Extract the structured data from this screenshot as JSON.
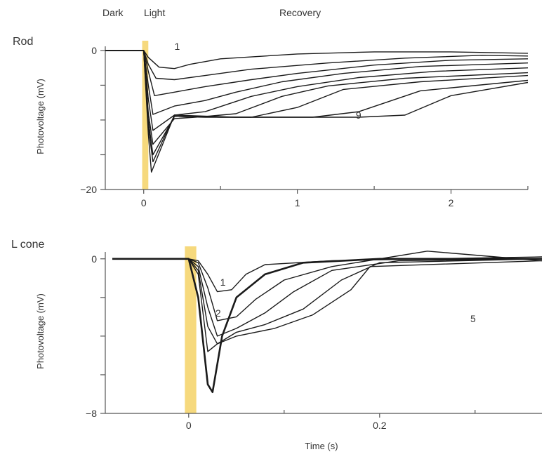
{
  "phases": {
    "dark": "Dark",
    "light": "Light",
    "recovery": "Recovery"
  },
  "colors": {
    "trace": "#1a1a1a",
    "light_pulse": "#f5d266",
    "axis": "#555555"
  },
  "chart_data": [
    {
      "type": "line",
      "panel_label": "Rod",
      "ylabel": "Photovoltage (mV)",
      "xlabel": "",
      "xlim": [
        -0.25,
        2.5
      ],
      "ylim": [
        -20,
        1
      ],
      "x_ticks": [
        0,
        1,
        2
      ],
      "x_tick_labels": [
        "0",
        "1",
        "2"
      ],
      "x_minor_ticks": [
        0.5,
        1.5,
        2.5
      ],
      "y_ticks": [
        0,
        -5,
        -10,
        -15,
        -20
      ],
      "y_tick_labels": [
        "0",
        "",
        "",
        "",
        "−20"
      ],
      "light_pulse": [
        -0.01,
        0.03
      ],
      "series": [
        {
          "name": "1",
          "label_at": [
            0.2,
            0.6
          ],
          "baseline_end": 0,
          "x": [
            -0.25,
            0,
            0.03,
            0.1,
            0.2,
            0.3,
            0.5,
            1,
            1.5,
            2,
            2.5
          ],
          "y": [
            0,
            0,
            -1,
            -2.4,
            -2.6,
            -2.0,
            -1.2,
            -0.5,
            -0.2,
            -0.2,
            -0.4
          ]
        },
        {
          "name": "",
          "x": [
            -0.25,
            0,
            0.03,
            0.08,
            0.2,
            0.4,
            0.7,
            1.2,
            1.7,
            2.2,
            2.5
          ],
          "y": [
            0,
            0,
            -2,
            -4.0,
            -4.2,
            -3.6,
            -2.7,
            -1.8,
            -1.1,
            -0.7,
            -0.8
          ]
        },
        {
          "name": "",
          "x": [
            -0.25,
            0,
            0.03,
            0.07,
            0.2,
            0.4,
            0.7,
            1.0,
            1.5,
            2.0,
            2.5
          ],
          "y": [
            0,
            0,
            -3,
            -6.5,
            -6.0,
            -5.2,
            -4.2,
            -3.3,
            -2.1,
            -1.4,
            -1.2
          ]
        },
        {
          "name": "",
          "x": [
            -0.25,
            0,
            0.03,
            0.06,
            0.2,
            0.4,
            0.6,
            0.9,
            1.3,
            1.8,
            2.5
          ],
          "y": [
            0,
            0,
            -5,
            -9.2,
            -8.0,
            -7.2,
            -6.0,
            -4.5,
            -3.3,
            -2.3,
            -1.8
          ]
        },
        {
          "name": "",
          "x": [
            -0.25,
            0,
            0.03,
            0.06,
            0.2,
            0.4,
            0.7,
            1.0,
            1.4,
            1.9,
            2.5
          ],
          "y": [
            0,
            0,
            -7,
            -11.5,
            -9.3,
            -8.8,
            -6.6,
            -5.2,
            -3.9,
            -3.0,
            -2.5
          ]
        },
        {
          "name": "",
          "x": [
            -0.25,
            0,
            0.03,
            0.06,
            0.2,
            0.4,
            0.6,
            0.9,
            1.2,
            1.7,
            2.5
          ],
          "y": [
            0,
            0,
            -9,
            -13.5,
            -9.8,
            -9.5,
            -9.1,
            -6.6,
            -5.1,
            -4.0,
            -3.2
          ]
        },
        {
          "name": "",
          "x": [
            -0.25,
            0,
            0.03,
            0.06,
            0.2,
            0.4,
            0.7,
            1.0,
            1.3,
            1.8,
            2.5
          ],
          "y": [
            0,
            0,
            -10,
            -15,
            -9.5,
            -9.6,
            -9.6,
            -8.2,
            -5.6,
            -4.5,
            -3.6
          ]
        },
        {
          "name": "",
          "x": [
            -0.25,
            0,
            0.03,
            0.06,
            0.2,
            0.5,
            0.8,
            1.1,
            1.4,
            1.8,
            2.5
          ],
          "y": [
            0,
            0,
            -11,
            -16,
            -9.3,
            -9.6,
            -9.6,
            -9.6,
            -8.8,
            -5.8,
            -4.3
          ]
        },
        {
          "name": "9",
          "label_at": [
            1.38,
            -9.3
          ],
          "x": [
            -0.25,
            0,
            0.03,
            0.05,
            0.2,
            0.6,
            1.0,
            1.4,
            1.7,
            2.0,
            2.5
          ],
          "y": [
            0,
            0,
            -12,
            -17.5,
            -9.3,
            -9.6,
            -9.6,
            -9.6,
            -9.3,
            -6.5,
            -4.6
          ]
        }
      ]
    },
    {
      "type": "line",
      "panel_label": "L cone",
      "ylabel": "Photovoltage (mV)",
      "xlabel": "Time (s)",
      "xlim": [
        -0.08,
        0.37
      ],
      "ylim": [
        -8,
        0.5
      ],
      "x_ticks": [
        0,
        0.2
      ],
      "x_tick_labels": [
        "0",
        "0.2"
      ],
      "x_minor_ticks": [
        0.1,
        0.3
      ],
      "y_ticks": [
        0,
        -2,
        -4,
        -6,
        -8
      ],
      "y_tick_labels": [
        "0",
        "",
        "",
        "",
        "−8"
      ],
      "light_pulse": [
        -0.004,
        0.008
      ],
      "series": [
        {
          "name": "1",
          "label_at": [
            0.033,
            -1.2
          ],
          "x": [
            -0.08,
            0,
            0.01,
            0.02,
            0.03,
            0.045,
            0.06,
            0.08,
            0.15,
            0.25,
            0.37
          ],
          "y": [
            0,
            0,
            -0.1,
            -0.8,
            -1.7,
            -1.6,
            -0.8,
            -0.3,
            -0.1,
            0.0,
            0.1
          ]
        },
        {
          "name": "2",
          "label_at": [
            0.028,
            -2.8
          ],
          "x": [
            -0.08,
            0,
            0.01,
            0.02,
            0.03,
            0.05,
            0.07,
            0.1,
            0.15,
            0.25,
            0.37
          ],
          "y": [
            0,
            0,
            -0.2,
            -1.5,
            -3.2,
            -3.0,
            -2.1,
            -1.1,
            -0.4,
            0.4,
            -0.1
          ]
        },
        {
          "name": "",
          "x": [
            -0.08,
            0,
            0.01,
            0.02,
            0.03,
            0.05,
            0.08,
            0.11,
            0.15,
            0.22,
            0.37
          ],
          "y": [
            0,
            0,
            -0.4,
            -2.5,
            -4.0,
            -3.6,
            -2.8,
            -1.7,
            -0.6,
            -0.1,
            0.0
          ]
        },
        {
          "name": "",
          "x": [
            -0.08,
            0,
            0.01,
            0.02,
            0.03,
            0.05,
            0.08,
            0.12,
            0.16,
            0.2,
            0.37
          ],
          "y": [
            0,
            0,
            -0.6,
            -3.5,
            -4.4,
            -3.8,
            -3.4,
            -2.6,
            -1.1,
            -0.2,
            0.0
          ]
        },
        {
          "name": "5",
          "label_at": [
            0.295,
            -3.1
          ],
          "x": [
            -0.08,
            0,
            0.01,
            0.02,
            0.03,
            0.05,
            0.09,
            0.13,
            0.17,
            0.19,
            0.37
          ],
          "y": [
            0,
            0,
            -0.8,
            -4.8,
            -4.4,
            -4.0,
            -3.6,
            -2.9,
            -1.6,
            -0.4,
            -0.1
          ]
        },
        {
          "name": "",
          "x": [
            -0.08,
            0,
            0.01,
            0.02,
            0.025,
            0.035,
            0.05,
            0.08,
            0.12,
            0.2,
            0.37
          ],
          "y": [
            0,
            0,
            -2,
            -6.5,
            -6.9,
            -4.0,
            -2.0,
            -0.8,
            -0.2,
            0.0,
            0.0
          ]
        }
      ]
    }
  ]
}
